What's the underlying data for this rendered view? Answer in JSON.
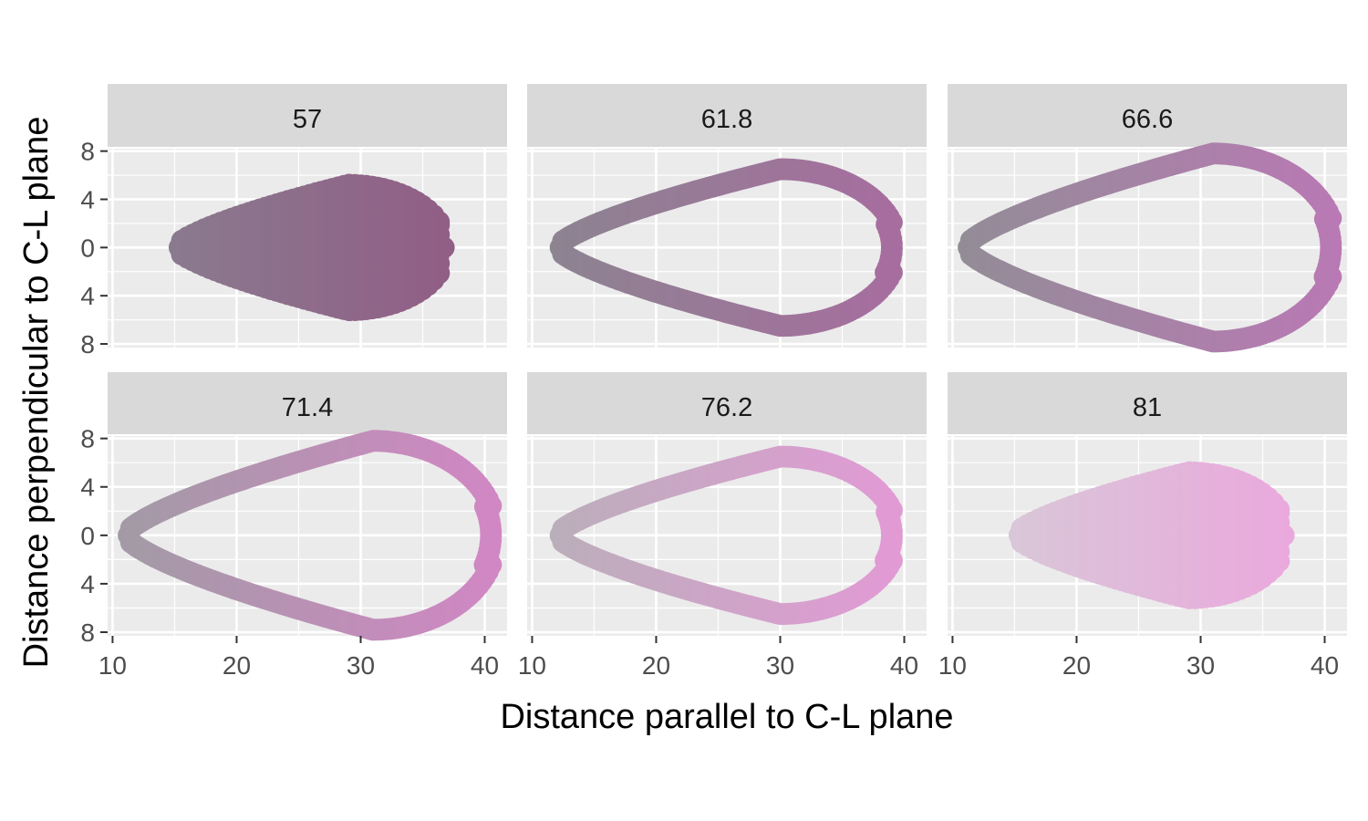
{
  "chart_data": {
    "type": "scatter",
    "xlabel": "Distance parallel to C-L plane",
    "ylabel": "Distance perpendicular to C-L plane",
    "xlim": [
      9.6,
      41.8
    ],
    "ylim": [
      -8.3,
      8.2
    ],
    "x_ticks": [
      10,
      20,
      30,
      40
    ],
    "x_tick_labels": [
      "10",
      "20",
      "30",
      "40"
    ],
    "y_ticks": [
      8,
      4,
      0,
      -4,
      -8
    ],
    "y_tick_labels": [
      "8",
      "4",
      "0",
      "4",
      "8"
    ],
    "grid": true,
    "legend": "none",
    "panels": [
      {
        "label": "57",
        "value": 57,
        "shape": "filled",
        "x_min": 15,
        "x_max": 37,
        "x_peak": 29,
        "half_height": 5.2,
        "color_left": "#8a7a8e",
        "color_right": "#915e86"
      },
      {
        "label": "61.8",
        "value": 61.8,
        "shape": "ring",
        "x_min": 12,
        "x_max": 39.5,
        "x_peak": 30,
        "half_height": 6.5,
        "color_left": "#8d8391",
        "color_right": "#a76d9f"
      },
      {
        "label": "66.6",
        "value": 66.6,
        "shape": "ring",
        "x_min": 11,
        "x_max": 41,
        "x_peak": 31,
        "half_height": 7.8,
        "color_left": "#938c97",
        "color_right": "#b979b4"
      },
      {
        "label": "71.4",
        "value": 71.4,
        "shape": "ring",
        "x_min": 11,
        "x_max": 41,
        "x_peak": 31,
        "half_height": 7.8,
        "color_left": "#a39aa6",
        "color_right": "#d187c4"
      },
      {
        "label": "76.2",
        "value": 76.2,
        "shape": "ring",
        "x_min": 12,
        "x_max": 39.5,
        "x_peak": 30,
        "half_height": 6.5,
        "color_left": "#bbaebb",
        "color_right": "#e29ad5"
      },
      {
        "label": "81",
        "value": 81,
        "shape": "filled",
        "x_min": 15,
        "x_max": 37,
        "x_peak": 29,
        "half_height": 5.2,
        "color_left": "#d9c6d8",
        "color_right": "#eaa9dd"
      }
    ]
  }
}
